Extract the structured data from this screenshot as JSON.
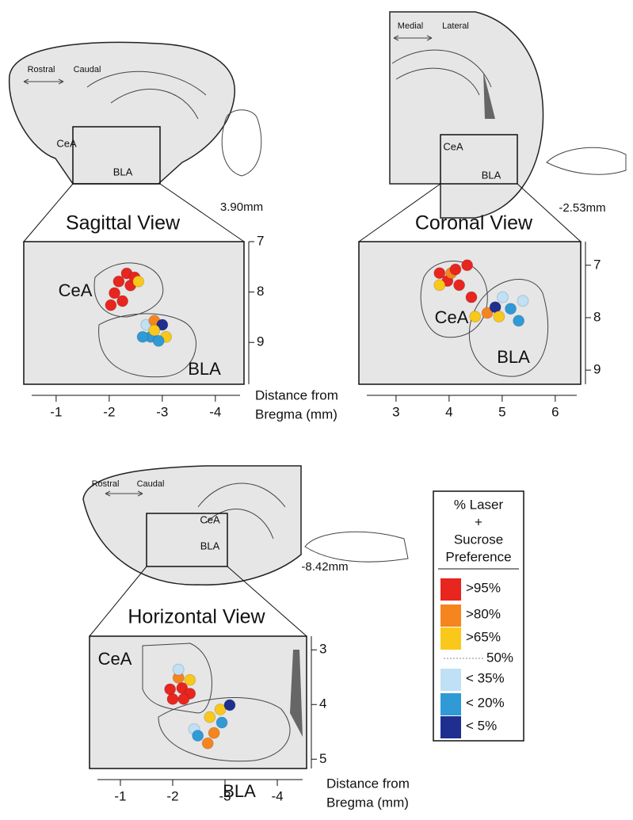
{
  "chart_data": [
    {
      "type": "scatter",
      "title": "Sagittal View",
      "x_label": [
        "Distance from",
        "Bregma (mm)"
      ],
      "regions": [
        "CeA",
        "BLA"
      ],
      "overview": {
        "labels": [
          "Rostral",
          "Caudal",
          "CeA",
          "BLA"
        ],
        "depth": "3.90mm"
      },
      "xlim": [
        -0.39,
        -4.54
      ],
      "ylim": [
        7.0,
        9.83
      ],
      "xticks": [
        -1,
        -2,
        -3,
        -4
      ],
      "yticks": [
        7,
        8,
        9
      ],
      "x": [
        -2.33,
        -2.18,
        -2.1,
        -2.25,
        -2.4,
        -2.48,
        -2.03,
        -2.55,
        -2.7,
        -2.85,
        -3.0,
        -3.07,
        -2.78,
        -2.93,
        -2.63,
        -2.85
      ],
      "values": [
        7.63,
        7.79,
        8.02,
        8.18,
        7.87,
        7.71,
        8.26,
        7.79,
        8.65,
        8.57,
        8.65,
        8.89,
        8.89,
        8.97,
        8.89,
        8.76
      ],
      "colors": [
        "#e8251f",
        "#e8251f",
        "#e8251f",
        "#e8251f",
        "#e8251f",
        "#e8251f",
        "#e8251f",
        "#f9c81a",
        "#bfe0f5",
        "#f5851f",
        "#1f2f8f",
        "#f9c81a",
        "#2f9ad6",
        "#2f9ad6",
        "#2f9ad6",
        "#f9c81a"
      ]
    },
    {
      "type": "scatter",
      "title": "Coronal View",
      "regions": [
        "CeA",
        "BLA"
      ],
      "overview": {
        "labels": [
          "Medial",
          "Lateral",
          "CeA",
          "BLA"
        ],
        "depth": "-2.53mm"
      },
      "xlim": [
        2.3,
        6.48
      ],
      "ylim": [
        6.55,
        9.27
      ],
      "xticks": [
        3,
        4,
        5,
        6
      ],
      "yticks": [
        7,
        8,
        9
      ],
      "x": [
        3.82,
        4.34,
        3.97,
        4.19,
        4.42,
        3.82,
        4.04,
        4.49,
        4.72,
        4.87,
        5.01,
        5.16,
        5.31,
        5.39,
        4.94,
        4.12
      ],
      "values": [
        7.15,
        7.0,
        7.3,
        7.38,
        7.61,
        7.38,
        7.15,
        7.98,
        7.91,
        7.8,
        7.61,
        7.83,
        8.06,
        7.68,
        7.98,
        7.08
      ],
      "colors": [
        "#e8251f",
        "#e8251f",
        "#e8251f",
        "#e8251f",
        "#e8251f",
        "#f9c81a",
        "#f5851f",
        "#f9c81a",
        "#f5851f",
        "#1f2f8f",
        "#bfe0f5",
        "#2f9ad6",
        "#2f9ad6",
        "#bfe0f5",
        "#f9c81a",
        "#e8251f"
      ]
    },
    {
      "type": "scatter",
      "title": "Horizontal View",
      "x_label": [
        "Distance from",
        "Bregma (mm)"
      ],
      "regions": [
        "CeA",
        "BLA"
      ],
      "overview": {
        "labels": [
          "Rostral",
          "Caudal",
          "CeA",
          "BLA"
        ],
        "depth": "-8.42mm"
      },
      "xlim": [
        -0.41,
        -4.56
      ],
      "ylim": [
        2.75,
        5.17
      ],
      "xticks": [
        -1,
        -2,
        -3,
        -4
      ],
      "yticks": [
        3,
        4,
        5
      ],
      "x": [
        -1.95,
        -2.18,
        -2.33,
        -2.0,
        -2.21,
        -2.11,
        -2.33,
        -2.11,
        -2.41,
        -2.48,
        -2.67,
        -2.79,
        -2.71,
        -2.91,
        -3.09,
        -2.94
      ],
      "values": [
        3.72,
        3.7,
        3.8,
        3.9,
        3.9,
        3.51,
        3.55,
        3.36,
        4.45,
        4.57,
        4.71,
        4.52,
        4.23,
        4.09,
        4.01,
        4.33
      ],
      "colors": [
        "#e8251f",
        "#e8251f",
        "#e8251f",
        "#e8251f",
        "#e8251f",
        "#f5851f",
        "#f9c81a",
        "#bfe0f5",
        "#bfe0f5",
        "#2f9ad6",
        "#f5851f",
        "#f5851f",
        "#f9c81a",
        "#f9c81a",
        "#1f2f8f",
        "#2f9ad6"
      ]
    }
  ],
  "legend": {
    "title": [
      "% Laser",
      "+",
      "Sucrose",
      "Preference"
    ],
    "threshold": "50%",
    "items": [
      {
        "label": ">95%",
        "color": "#e8251f"
      },
      {
        "label": ">80%",
        "color": "#f5851f"
      },
      {
        "label": ">65%",
        "color": "#f9c81a"
      },
      {
        "label": "< 35%",
        "color": "#bfe0f5"
      },
      {
        "label": "< 20%",
        "color": "#2f9ad6"
      },
      {
        "label": "< 5%",
        "color": "#1f2f8f"
      }
    ]
  }
}
